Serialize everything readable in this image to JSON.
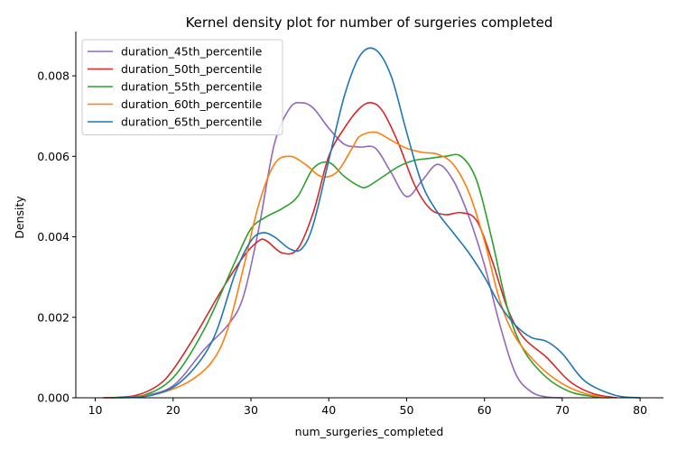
{
  "chart_data": {
    "type": "line",
    "title": "Kernel density plot for number of surgeries completed",
    "xlabel": "num_surgeries_completed",
    "ylabel": "Density",
    "xlim": [
      7.5,
      83
    ],
    "ylim": [
      0,
      0.0091
    ],
    "xticks": [
      10,
      20,
      30,
      40,
      50,
      60,
      70,
      80
    ],
    "yticks": [
      0.0,
      0.002,
      0.004,
      0.006,
      0.008
    ],
    "ytick_labels": [
      "0.000",
      "0.002",
      "0.004",
      "0.006",
      "0.008"
    ],
    "grid": false,
    "legend_position": "top-left",
    "series": [
      {
        "name": "duration_45th_percentile",
        "color": "#9467bd",
        "x": [
          12,
          16,
          20,
          24,
          27,
          29,
          31,
          33,
          35,
          36.5,
          38,
          40,
          42,
          44,
          46,
          48,
          50,
          52,
          54,
          56,
          58,
          60,
          62,
          64,
          66,
          68,
          70
        ],
        "y": [
          0.0,
          5e-05,
          0.0003,
          0.0012,
          0.0018,
          0.0025,
          0.0042,
          0.0063,
          0.0072,
          0.00733,
          0.0072,
          0.0067,
          0.0063,
          0.00623,
          0.0062,
          0.0056,
          0.005,
          0.0054,
          0.0058,
          0.0054,
          0.0045,
          0.0033,
          0.0018,
          0.0006,
          0.00015,
          2e-05,
          0.0
        ]
      },
      {
        "name": "duration_50th_percentile",
        "color": "#d62728",
        "x": [
          11,
          15,
          18,
          20,
          23,
          26,
          29,
          31,
          32,
          34,
          36,
          38,
          40,
          42,
          44,
          45.5,
          47,
          49,
          51,
          53,
          55,
          57,
          59,
          61,
          63,
          65,
          68,
          71,
          74,
          77
        ],
        "y": [
          0.0,
          5e-05,
          0.0003,
          0.0007,
          0.0016,
          0.0026,
          0.0035,
          0.0039,
          0.0039,
          0.0036,
          0.0037,
          0.0046,
          0.006,
          0.0067,
          0.0072,
          0.00733,
          0.0071,
          0.0063,
          0.0053,
          0.0047,
          0.00455,
          0.0046,
          0.0044,
          0.0034,
          0.0022,
          0.0015,
          0.001,
          0.0004,
          0.0001,
          0.0
        ]
      },
      {
        "name": "duration_55th_percentile",
        "color": "#2ca02c",
        "x": [
          12,
          16,
          20,
          24,
          28,
          30,
          32,
          34,
          36,
          38,
          40,
          42,
          44,
          45,
          47,
          49,
          51,
          53,
          55,
          57,
          59,
          61,
          63,
          65,
          68,
          71,
          74,
          76
        ],
        "y": [
          0.0,
          5e-05,
          0.0005,
          0.0017,
          0.0034,
          0.0042,
          0.0045,
          0.0047,
          0.005,
          0.0057,
          0.00585,
          0.0055,
          0.00525,
          0.00525,
          0.0055,
          0.00575,
          0.0059,
          0.00595,
          0.006,
          0.006,
          0.0054,
          0.0039,
          0.0022,
          0.0012,
          0.0005,
          0.00015,
          3e-05,
          0.0
        ]
      },
      {
        "name": "duration_60th_percentile",
        "color": "#ff7f0e",
        "x": [
          14,
          18,
          22,
          25,
          27,
          29,
          31,
          33,
          35,
          37,
          39,
          41,
          43,
          44,
          46,
          48,
          50,
          52,
          54,
          56,
          58,
          60,
          62,
          64,
          67,
          70,
          73,
          76
        ],
        "y": [
          0.0,
          0.0001,
          0.0004,
          0.0009,
          0.0017,
          0.0032,
          0.0048,
          0.0058,
          0.006,
          0.0058,
          0.0055,
          0.0056,
          0.0062,
          0.0065,
          0.0066,
          0.0064,
          0.0062,
          0.0061,
          0.00605,
          0.0058,
          0.0051,
          0.0039,
          0.0024,
          0.0015,
          0.0008,
          0.00035,
          0.0001,
          0.0
        ]
      },
      {
        "name": "duration_65th_percentile",
        "color": "#1f77b4",
        "x": [
          13,
          17,
          21,
          25,
          28,
          30,
          31.5,
          33,
          35,
          36.5,
          38,
          40,
          42,
          44,
          46,
          48,
          50,
          52,
          54,
          56,
          58,
          60,
          62,
          64,
          66,
          68,
          70,
          73,
          77,
          80
        ],
        "y": [
          0.0,
          5e-05,
          0.0004,
          0.0014,
          0.0031,
          0.0039,
          0.0041,
          0.004,
          0.0037,
          0.0037,
          0.0043,
          0.0059,
          0.0075,
          0.0085,
          0.00865,
          0.008,
          0.0066,
          0.0053,
          0.0046,
          0.0041,
          0.0036,
          0.003,
          0.0023,
          0.0018,
          0.0015,
          0.0014,
          0.0011,
          0.0004,
          5e-05,
          0.0
        ]
      }
    ]
  }
}
